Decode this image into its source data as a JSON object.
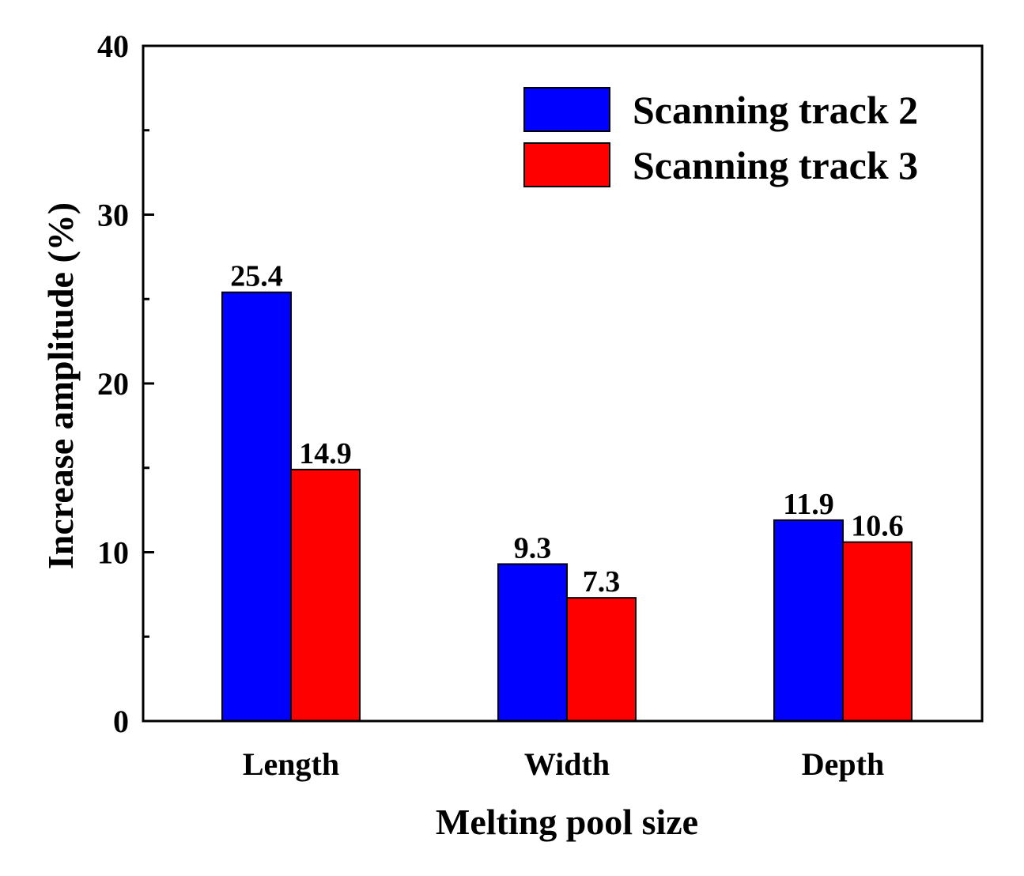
{
  "chart_data": {
    "type": "bar",
    "xlabel": "Melting pool size",
    "ylabel": "Increase amplitude (%)",
    "categories": [
      "Length",
      "Width",
      "Depth"
    ],
    "series": [
      {
        "name": "Scanning track 2",
        "color": "#0000ff",
        "values": [
          25.4,
          9.3,
          11.9
        ],
        "labels": [
          "25.4",
          "9.3",
          "11.9"
        ]
      },
      {
        "name": "Scanning track 3",
        "color": "#ff0000",
        "values": [
          14.9,
          7.3,
          10.6
        ],
        "labels": [
          "14.9",
          "7.3",
          "10.6"
        ]
      }
    ],
    "ylim": [
      0,
      40
    ],
    "yticks": [
      0,
      10,
      20,
      30,
      40
    ],
    "ytick_labels": [
      "0",
      "10",
      "20",
      "30",
      "40"
    ],
    "yminor_step": 5,
    "legend_position": "top-right",
    "grid": false
  }
}
